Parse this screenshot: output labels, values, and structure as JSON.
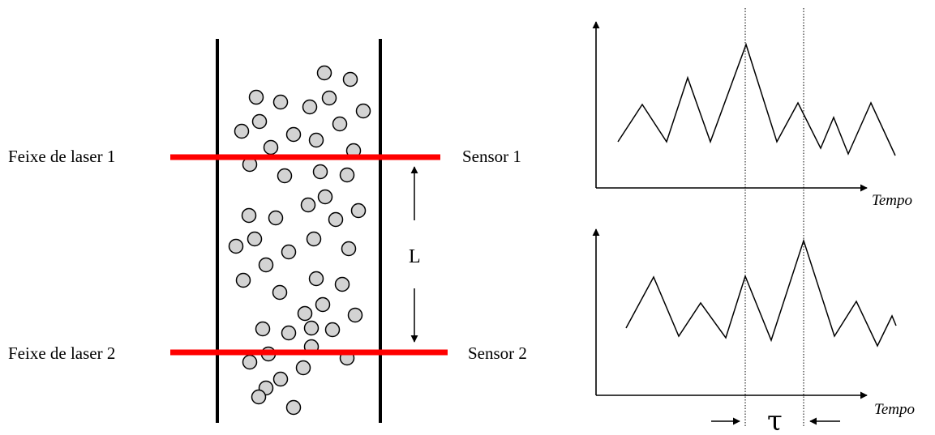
{
  "labels": {
    "beam1": "Feixe de laser 1",
    "beam2": "Feixe de laser 2",
    "sensor1": "Sensor 1",
    "sensor2": "Sensor 2",
    "distance": "L",
    "time_axis_top": "Tempo",
    "time_axis_bottom": "Tempo",
    "delay": "τ"
  },
  "colors": {
    "laser": "#ff0000",
    "particle_fill": "#d3d3d3",
    "line": "#000000"
  },
  "particle_count": 56
}
